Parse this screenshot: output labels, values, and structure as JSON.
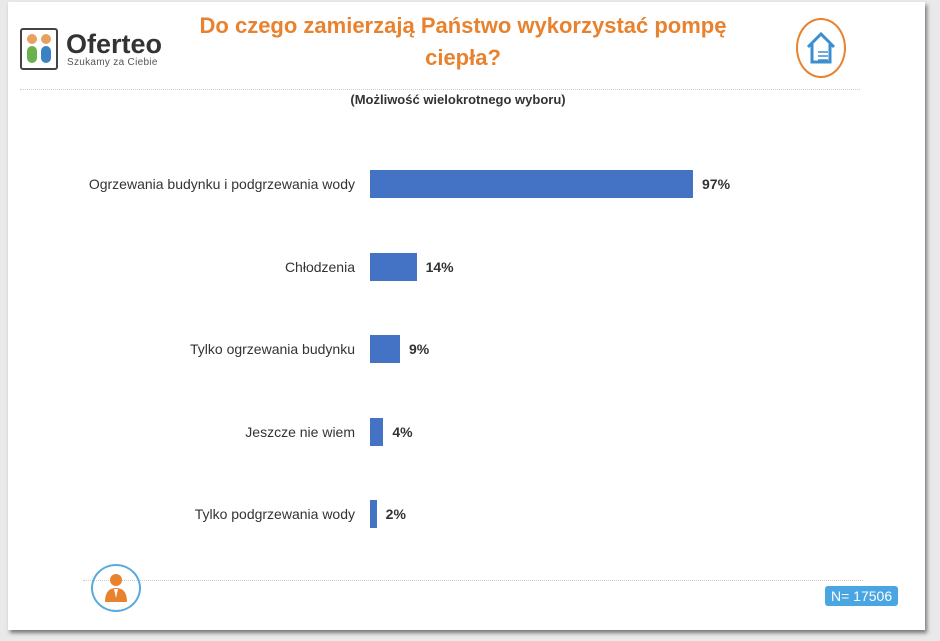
{
  "brand": {
    "name": "Oferteo",
    "tagline": "Szukamy za Ciebie"
  },
  "chart_data": {
    "type": "bar",
    "orientation": "horizontal",
    "title": "Do czego zamierzają Państwo wykorzystać pompę ciepła?",
    "subtitle": "(Możliwość wielokrotnego wyboru)",
    "categories": [
      "Ogrzewania budynku i podgrzewania wody",
      "Chłodzenia",
      "Tylko ogrzewania budynku",
      "Jeszcze nie wiem",
      "Tylko podgrzewania wody"
    ],
    "values": [
      97,
      14,
      9,
      4,
      2
    ],
    "value_labels": [
      "97%",
      "14%",
      "9%",
      "4%",
      "2%"
    ],
    "xlim": [
      0,
      100
    ],
    "grid": false,
    "bar_color": "#4472c4"
  },
  "sample": "N= 17506",
  "colors": {
    "accent": "#e8822e",
    "blue": "#4aa6e2"
  }
}
